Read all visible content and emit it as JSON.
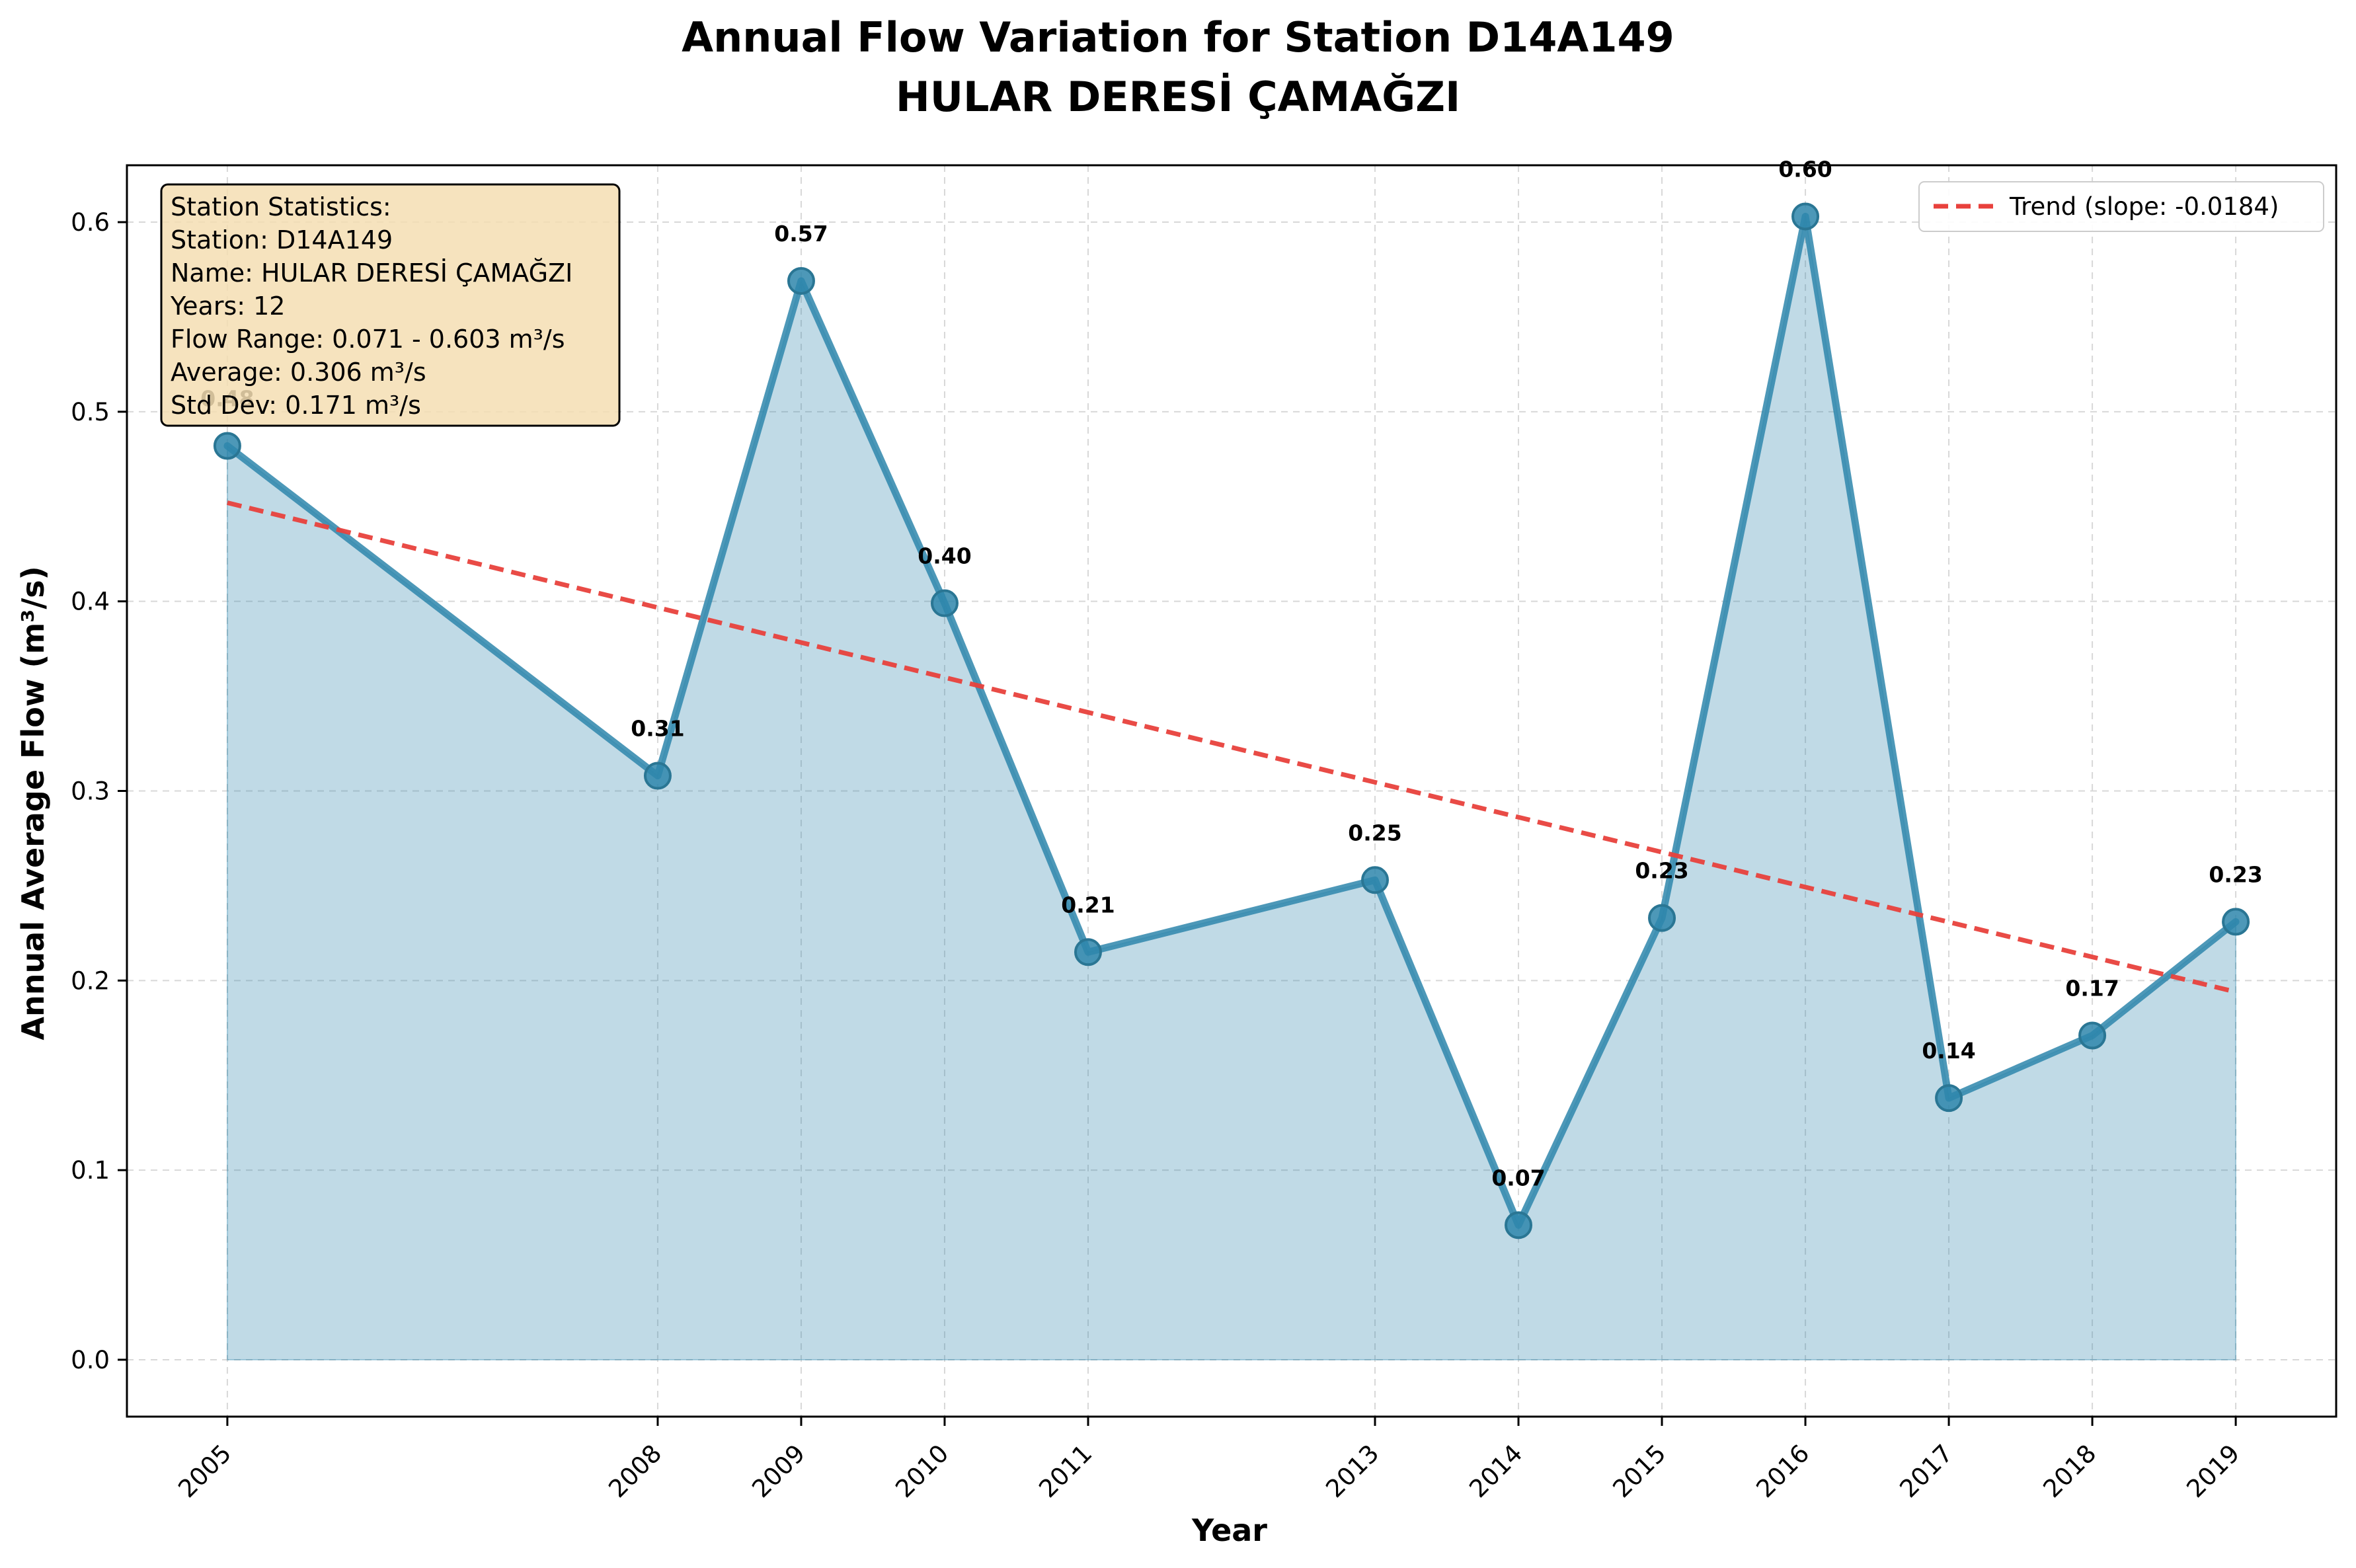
{
  "chart_data": {
    "type": "line",
    "title": "Annual Flow Variation for Station D14A149",
    "subtitle": "HULAR DERESİ ÇAMAĞZI",
    "xlabel": "Year",
    "ylabel": "Annual Average Flow (m³/s)",
    "ylim": [
      -0.03,
      0.63
    ],
    "xlim": [
      2004.3,
      2019.7
    ],
    "x_ticks": [
      2005,
      2008,
      2009,
      2010,
      2011,
      2013,
      2014,
      2015,
      2016,
      2017,
      2018,
      2019
    ],
    "y_ticks": [
      0.0,
      0.1,
      0.2,
      0.3,
      0.4,
      0.5,
      0.6
    ],
    "y_tick_labels": [
      "0.0",
      "0.1",
      "0.2",
      "0.3",
      "0.4",
      "0.5",
      "0.6"
    ],
    "grid": true,
    "series": [
      {
        "color": "#2e86ab",
        "fill": true,
        "points": [
          {
            "x": 2005,
            "y": 0.482,
            "label": "0.48"
          },
          {
            "x": 2008,
            "y": 0.308,
            "label": "0.31"
          },
          {
            "x": 2009,
            "y": 0.569,
            "label": "0.57"
          },
          {
            "x": 2010,
            "y": 0.399,
            "label": "0.40"
          },
          {
            "x": 2011,
            "y": 0.215,
            "label": "0.21"
          },
          {
            "x": 2013,
            "y": 0.253,
            "label": "0.25"
          },
          {
            "x": 2014,
            "y": 0.071,
            "label": "0.07"
          },
          {
            "x": 2015,
            "y": 0.233,
            "label": "0.23"
          },
          {
            "x": 2016,
            "y": 0.603,
            "label": "0.60"
          },
          {
            "x": 2017,
            "y": 0.138,
            "label": "0.14"
          },
          {
            "x": 2018,
            "y": 0.171,
            "label": "0.17"
          },
          {
            "x": 2019,
            "y": 0.231,
            "label": "0.23"
          }
        ]
      }
    ],
    "trend": {
      "name": "Trend (slope: -0.0184)",
      "slope": -0.0184,
      "x": [
        2005,
        2019
      ],
      "y": [
        0.452,
        0.194
      ],
      "color": "#e8413c"
    },
    "legend_position": "top-right",
    "stats_box": {
      "lines": [
        "Station Statistics:",
        "Station: D14A149",
        "Name: HULAR DERESİ ÇAMAĞZI",
        "Years: 12",
        "Flow Range: 0.071 - 0.603 m³/s",
        "Average: 0.306 m³/s",
        "Std Dev: 0.171 m³/s"
      ],
      "background": "#f5deb3"
    }
  }
}
